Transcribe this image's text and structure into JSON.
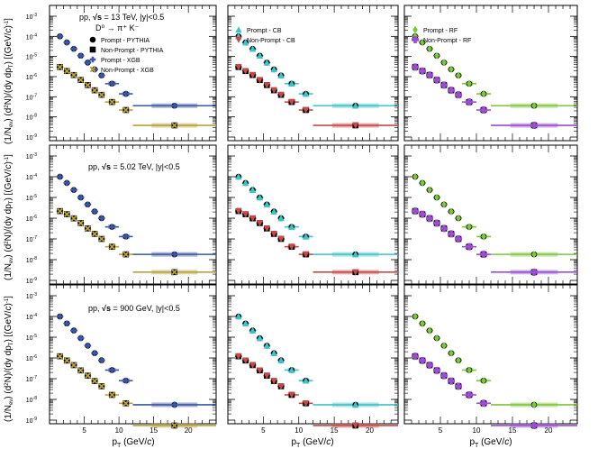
{
  "chart_data": {
    "type": "scatter",
    "y_scale": "log",
    "ylim": [
      1e-09,
      0.001
    ],
    "xlim": [
      0,
      24
    ],
    "x_ticks": [
      5,
      10,
      15,
      20
    ],
    "y_tick_labels": [
      "10⁻³",
      "10⁻⁴",
      "10⁻⁵",
      "10⁻⁶",
      "10⁻⁷",
      "10⁻⁸",
      "10⁻⁹"
    ],
    "y_tick_labels_bottom": [
      "10⁻³",
      "10⁻⁴",
      "10⁻⁵",
      "10⁻⁶",
      "10⁻⁷",
      "10⁻⁸",
      "10⁻⁹"
    ],
    "xlabel": "p_T (GeV/c)",
    "ylabel": "(1/N_ev) (d²N)/(dy dp_T) [(GeV/c)⁻¹]",
    "decay": "D⁰ → π⁺ K⁻",
    "bins": [
      {
        "x": 1.5,
        "lo": 1,
        "hi": 2
      },
      {
        "x": 2.5,
        "lo": 2,
        "hi": 3
      },
      {
        "x": 3.5,
        "lo": 3,
        "hi": 4
      },
      {
        "x": 4.5,
        "lo": 4,
        "hi": 5
      },
      {
        "x": 5.5,
        "lo": 5,
        "hi": 6
      },
      {
        "x": 6.5,
        "lo": 6,
        "hi": 7
      },
      {
        "x": 7.5,
        "lo": 7,
        "hi": 8
      },
      {
        "x": 9,
        "lo": 8,
        "hi": 10
      },
      {
        "x": 11,
        "lo": 10,
        "hi": 12
      },
      {
        "x": 18,
        "lo": 12,
        "hi": 24
      }
    ],
    "rows": [
      {
        "label": "pp, √s = 13 TeV, |y|<0.5",
        "label_parts": {
          "pre": "pp, ",
          "sqrt": "√s",
          "post": " = 13 TeV, |y|<0.5"
        },
        "prompt": [
          0.0001,
          5e-05,
          2.4e-05,
          1.1e-05,
          5e-06,
          2.3e-06,
          1.15e-06,
          4.5e-07,
          1.4e-07,
          3.6e-08
        ],
        "nonprompt": [
          3e-06,
          1.9e-06,
          1.2e-06,
          6.8e-07,
          3.8e-07,
          2.1e-07,
          1.25e-07,
          5.5e-08,
          2.2e-08,
          3.8e-09
        ]
      },
      {
        "label": "pp, √s = 5.02 TeV, |y|<0.5",
        "label_parts": {
          "pre": "pp, ",
          "sqrt": "√s",
          "post": " = 5.02 TeV, |y|<0.5"
        },
        "prompt": [
          0.0001,
          5e-05,
          2.3e-05,
          1e-05,
          4.6e-06,
          2.1e-06,
          1e-06,
          3.8e-07,
          1.3e-07,
          1.8e-08
        ],
        "nonprompt": [
          2.2e-06,
          1.55e-06,
          9.8e-07,
          5.8e-07,
          3.2e-07,
          1.75e-07,
          1e-07,
          4.2e-08,
          1.8e-08,
          2.5e-09
        ]
      },
      {
        "label": "pp, √s = 900 GeV, |y|<0.5",
        "label_parts": {
          "pre": "pp, ",
          "sqrt": "√s",
          "post": " = 900 GeV, |y|<0.5"
        },
        "prompt": [
          0.0001,
          4.6e-05,
          2.1e-05,
          9e-06,
          3.9e-06,
          1.7e-06,
          7.7e-07,
          2.6e-07,
          8e-08,
          5.5e-09
        ],
        "nonprompt": [
          1.2e-06,
          7.5e-07,
          4.5e-07,
          2.5e-07,
          1.4e-07,
          7.7e-08,
          4.3e-08,
          1.65e-08,
          6.5e-09,
          5.5e-10
        ]
      }
    ],
    "columns": [
      {
        "key": "pythia",
        "legend": [
          {
            "marker": "circle",
            "label": "Prompt - PYTHIA",
            "color": "#000000"
          },
          {
            "marker": "square",
            "label": "Non-Prompt - PYTHIA",
            "color": "#000000"
          },
          {
            "marker": "cross",
            "label": "Prompt - XGB",
            "color": "#3c56a6"
          },
          {
            "marker": "xcross",
            "label": "Non-Prompt - XGB",
            "color": "#b8a23a"
          }
        ],
        "prompt_color": "#3c56a6",
        "nonprompt_color": "#b8a23a",
        "prompt_marker": "cross",
        "nonprompt_marker": "xcross"
      },
      {
        "key": "cb",
        "legend": [
          {
            "marker": "triangle-up",
            "label": "Prompt - CB",
            "color": "#3cc4c9"
          },
          {
            "marker": "triangle-down",
            "label": "Non-Prompt - CB",
            "color": "#c74a4a"
          }
        ],
        "prompt_color": "#3cc4c9",
        "nonprompt_color": "#c74a4a",
        "prompt_marker": "triangle-up",
        "nonprompt_marker": "triangle-down"
      },
      {
        "key": "rf",
        "legend": [
          {
            "marker": "diamond",
            "label": "Prompt - RF",
            "color": "#7ec63a"
          },
          {
            "marker": "plus",
            "label": "Non-Prompt - RF",
            "color": "#9a4fd0"
          }
        ],
        "prompt_color": "#7ec63a",
        "nonprompt_color": "#9a4fd0",
        "prompt_marker": "diamond",
        "nonprompt_marker": "plus"
      }
    ],
    "ylabel_parts": {
      "a": "(1/N",
      "b": "ev",
      "c": ") (d",
      "d": "2",
      "e": "N)/(dy dp",
      "f": "T",
      "g": ") [(GeV/",
      "h": "c",
      "i": ")",
      "j": "-1",
      "k": "]"
    },
    "xlabel_parts": {
      "a": "p",
      "b": "T",
      "c": " (GeV/",
      "d": "c",
      "e": ")"
    }
  }
}
